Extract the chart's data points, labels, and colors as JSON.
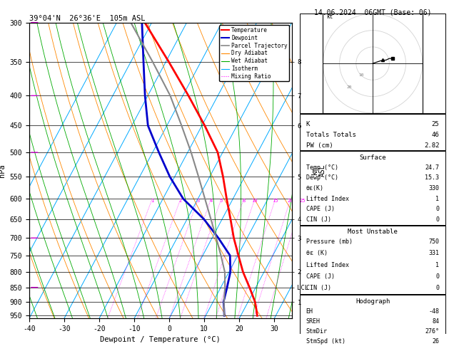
{
  "title_left": "39°04'N  26°36'E  105m ASL",
  "title_right": "14.06.2024  06GMT (Base: 06)",
  "xlabel": "Dewpoint / Temperature (°C)",
  "pressure_ticks": [
    300,
    350,
    400,
    450,
    500,
    550,
    600,
    650,
    700,
    750,
    800,
    850,
    900,
    950
  ],
  "xticklabels": [
    -40,
    -30,
    -20,
    -10,
    0,
    10,
    20,
    30
  ],
  "km_labels": [
    {
      "p": 350,
      "km": "8"
    },
    {
      "p": 400,
      "km": "7"
    },
    {
      "p": 450,
      "km": "6"
    },
    {
      "p": 550,
      "km": "5"
    },
    {
      "p": 650,
      "km": "4"
    },
    {
      "p": 700,
      "km": "3"
    },
    {
      "p": 800,
      "km": "2"
    },
    {
      "p": 850,
      "km": "LCL"
    },
    {
      "p": 900,
      "km": "1"
    }
  ],
  "temp_profile": {
    "pressure": [
      950,
      925,
      900,
      850,
      800,
      750,
      700,
      650,
      600,
      550,
      500,
      450,
      400,
      350,
      300
    ],
    "temp": [
      24.7,
      23.4,
      22.0,
      18.2,
      14.0,
      10.2,
      6.2,
      2.4,
      -1.8,
      -6.2,
      -11.4,
      -19.2,
      -28.4,
      -39.2,
      -52.0
    ]
  },
  "dewpoint_profile": {
    "pressure": [
      950,
      925,
      900,
      850,
      800,
      750,
      700,
      650,
      600,
      550,
      500,
      450,
      400,
      350,
      300
    ],
    "dewp": [
      15.3,
      14.2,
      13.0,
      11.8,
      10.4,
      7.8,
      1.8,
      -5.2,
      -14.2,
      -21.4,
      -28.2,
      -35.4,
      -40.8,
      -46.4,
      -52.8
    ]
  },
  "parcel_profile": {
    "pressure": [
      950,
      925,
      900,
      850,
      800,
      750,
      700,
      650,
      600,
      550,
      500,
      450,
      400,
      350,
      300
    ],
    "temp": [
      15.3,
      14.2,
      13.1,
      11.2,
      8.8,
      5.2,
      1.2,
      -3.2,
      -8.0,
      -13.2,
      -19.0,
      -25.8,
      -33.6,
      -43.8,
      -56.0
    ]
  },
  "mixing_ratio_lines": [
    1,
    2,
    3,
    4,
    5,
    8,
    10,
    15,
    20,
    25
  ],
  "colors": {
    "temperature": "#ff0000",
    "dewpoint": "#0000cc",
    "parcel": "#888888",
    "dry_adiabat": "#ff8800",
    "wet_adiabat": "#00aa00",
    "isotherm": "#00aaff",
    "mixing_ratio": "#ff00ff",
    "background": "#ffffff"
  },
  "stats": {
    "K": 25,
    "Totals_Totals": 46,
    "PW_cm": 2.82,
    "Surface_Temp": 24.7,
    "Surface_Dewp": 15.3,
    "Surface_theta_e": 330,
    "Surface_LI": 1,
    "Surface_CAPE": 0,
    "Surface_CIN": 0,
    "MU_Pressure": 750,
    "MU_theta_e": 331,
    "MU_LI": 1,
    "MU_CAPE": 0,
    "MU_CIN": 0,
    "EH": -48,
    "SREH": 84,
    "StmDir": 276,
    "StmSpd": 26
  }
}
